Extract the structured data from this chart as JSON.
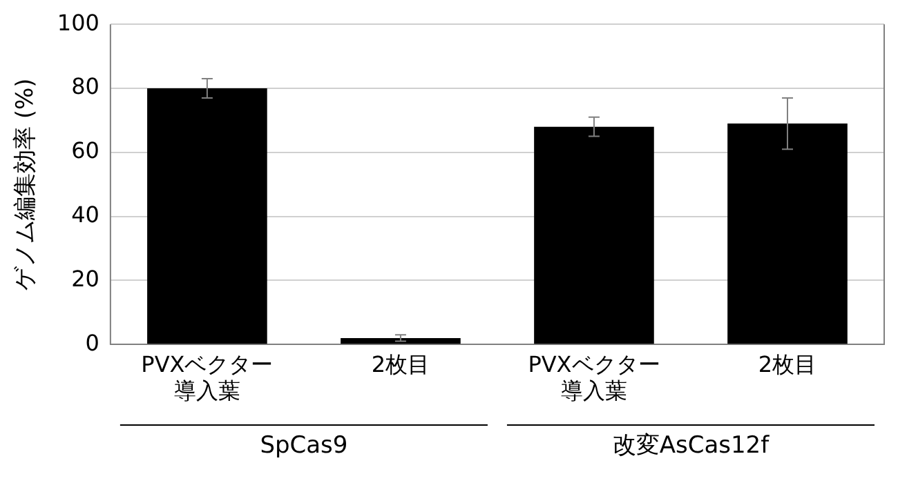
{
  "chart_data": {
    "type": "bar",
    "ylabel": "ゲノム編集効率 (%)",
    "categories": [
      "PVXベクター導入葉",
      "2枚目",
      "PVXベクター導入葉",
      "2枚目"
    ],
    "values": [
      80,
      2,
      68,
      69
    ],
    "color": "#000000",
    "errors": [
      3,
      1,
      3,
      8
    ],
    "ylim": [
      0,
      100
    ],
    "yticks": [
      0,
      20,
      40,
      60,
      80,
      100
    ],
    "grid": "y",
    "legend": false,
    "annotations": [
      "SpCas9",
      "改変AsCas12f"
    ]
  }
}
